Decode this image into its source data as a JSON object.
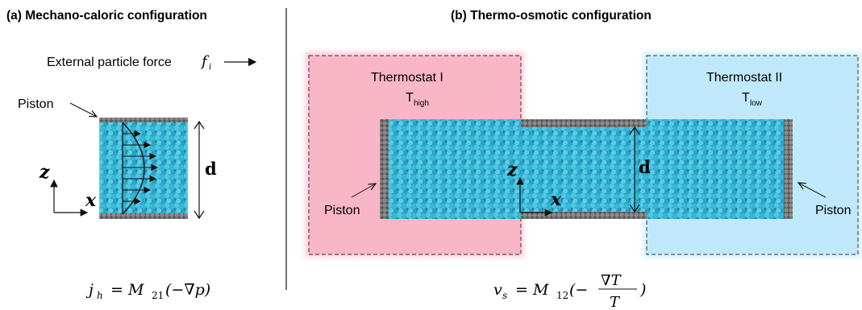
{
  "panel_a": {
    "title": "(a) Mechano-caloric configuration",
    "force_label": "External particle force",
    "force_symbol": "f",
    "force_subscript": "i",
    "piston_label": "Piston",
    "axis_z": "z",
    "axis_x": "x",
    "dimension_label": "d",
    "equation": {
      "lhs": "j",
      "lhs_sub": "h",
      "eq": " = M",
      "coef_sub": "21",
      "rhs": "(−∇p)"
    }
  },
  "panel_b": {
    "title": "(b) Thermo-osmotic configuration",
    "thermostat_left": {
      "name": "Thermostat I",
      "temp": "T",
      "temp_sub": "high",
      "color": "#f9b6c6"
    },
    "thermostat_right": {
      "name": "Thermostat II",
      "temp": "T",
      "temp_sub": "low",
      "color": "#bfe9fa"
    },
    "piston_left_label": "Piston",
    "piston_right_label": "Piston",
    "axis_z": "z",
    "axis_x": "x",
    "dimension_label": "d",
    "equation": {
      "lhs": "v",
      "lhs_sub": "s",
      "eq": " = M",
      "coef_sub": "12",
      "open": "(−",
      "num": "∇T",
      "den": "T",
      "close": ")"
    }
  },
  "colors": {
    "particle": "#3cb8d6",
    "particle_dark": "#1e8fae",
    "wall": "#6f6f6f",
    "divider": "#222222"
  }
}
